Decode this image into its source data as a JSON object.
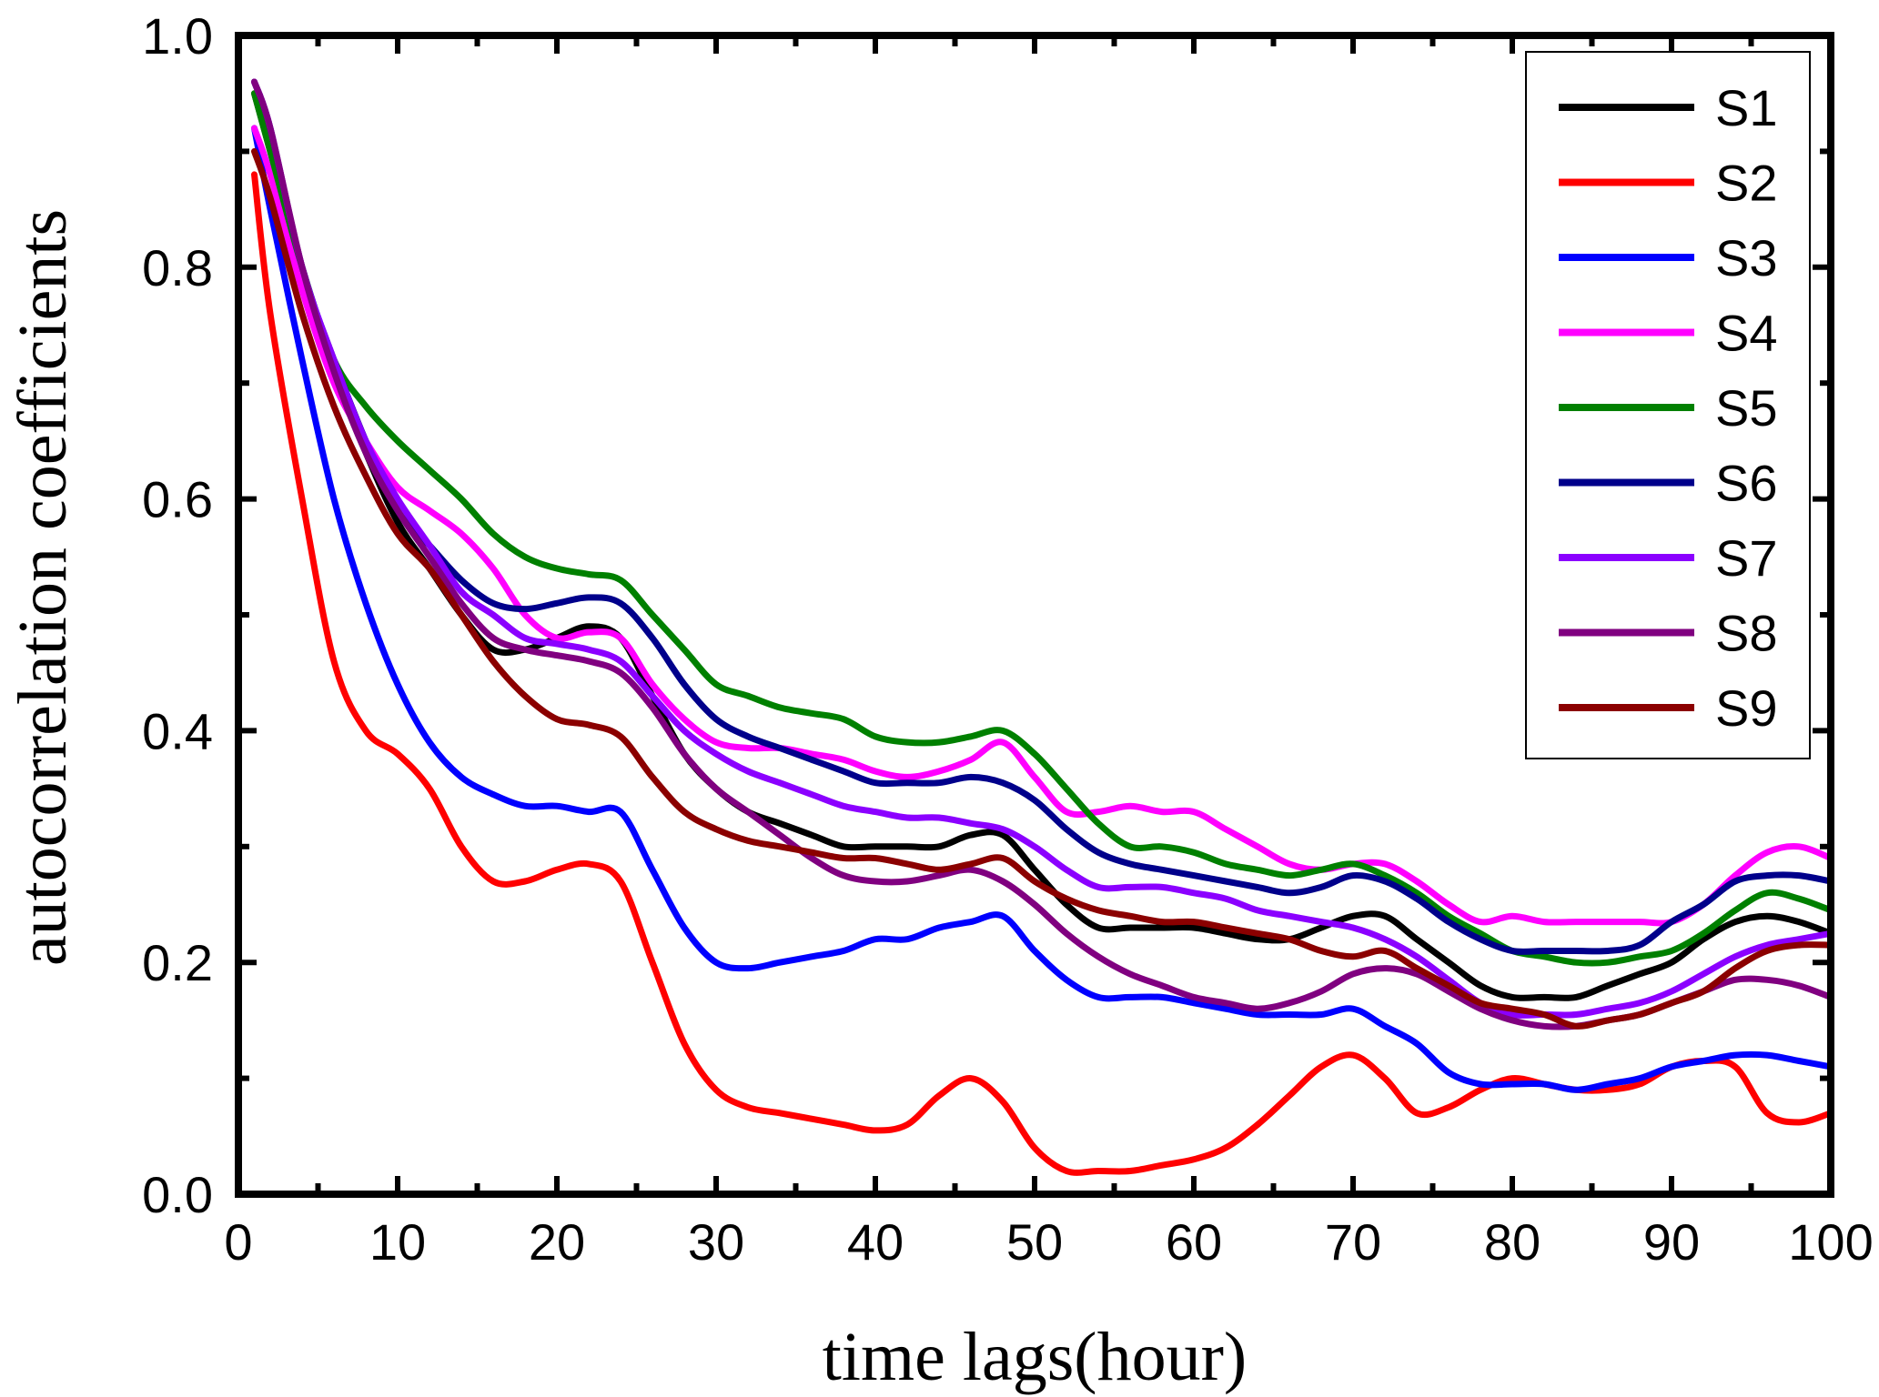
{
  "chart_data": {
    "type": "line",
    "title": "",
    "xlabel": "time lags(hour)",
    "ylabel": "autocorrelation coefficients",
    "xlim": [
      0,
      100
    ],
    "ylim": [
      0.0,
      1.0
    ],
    "xticks": [
      0,
      10,
      20,
      30,
      40,
      50,
      60,
      70,
      80,
      90,
      100
    ],
    "yticks": [
      "0.0",
      "0.2",
      "0.4",
      "0.6",
      "0.8",
      "1.0"
    ],
    "grid": false,
    "legend_position": "top-right",
    "x": [
      1,
      2,
      4,
      6,
      8,
      10,
      12,
      14,
      16,
      18,
      20,
      22,
      24,
      26,
      28,
      30,
      32,
      34,
      36,
      38,
      40,
      42,
      44,
      46,
      48,
      50,
      52,
      54,
      56,
      58,
      60,
      62,
      64,
      66,
      68,
      70,
      72,
      74,
      76,
      78,
      80,
      82,
      84,
      86,
      88,
      90,
      92,
      94,
      96,
      98,
      100
    ],
    "series": [
      {
        "name": "S1",
        "color": "#000000",
        "values": [
          0.95,
          0.9,
          0.8,
          0.71,
          0.64,
          0.58,
          0.54,
          0.5,
          0.47,
          0.47,
          0.48,
          0.49,
          0.48,
          0.43,
          0.38,
          0.35,
          0.33,
          0.32,
          0.31,
          0.3,
          0.3,
          0.3,
          0.3,
          0.31,
          0.31,
          0.28,
          0.25,
          0.23,
          0.23,
          0.23,
          0.23,
          0.225,
          0.22,
          0.22,
          0.23,
          0.24,
          0.24,
          0.22,
          0.2,
          0.18,
          0.17,
          0.17,
          0.17,
          0.18,
          0.19,
          0.2,
          0.22,
          0.235,
          0.24,
          0.235,
          0.225
        ]
      },
      {
        "name": "S2",
        "color": "#ff0000",
        "values": [
          0.88,
          0.76,
          0.6,
          0.46,
          0.4,
          0.38,
          0.35,
          0.3,
          0.27,
          0.27,
          0.28,
          0.285,
          0.27,
          0.2,
          0.13,
          0.09,
          0.075,
          0.07,
          0.065,
          0.06,
          0.055,
          0.06,
          0.085,
          0.1,
          0.08,
          0.04,
          0.02,
          0.02,
          0.02,
          0.025,
          0.03,
          0.04,
          0.06,
          0.085,
          0.11,
          0.12,
          0.1,
          0.07,
          0.075,
          0.09,
          0.1,
          0.095,
          0.09,
          0.09,
          0.095,
          0.11,
          0.115,
          0.11,
          0.07,
          0.062,
          0.07
        ]
      },
      {
        "name": "S3",
        "color": "#0000ff",
        "values": [
          0.92,
          0.85,
          0.72,
          0.6,
          0.51,
          0.44,
          0.39,
          0.36,
          0.345,
          0.335,
          0.335,
          0.33,
          0.33,
          0.28,
          0.23,
          0.2,
          0.195,
          0.2,
          0.205,
          0.21,
          0.22,
          0.22,
          0.23,
          0.235,
          0.24,
          0.21,
          0.185,
          0.17,
          0.17,
          0.17,
          0.165,
          0.16,
          0.155,
          0.155,
          0.155,
          0.16,
          0.145,
          0.13,
          0.105,
          0.095,
          0.095,
          0.095,
          0.09,
          0.095,
          0.1,
          0.11,
          0.115,
          0.12,
          0.12,
          0.115,
          0.11
        ]
      },
      {
        "name": "S4",
        "color": "#ff00ff",
        "values": [
          0.92,
          0.88,
          0.78,
          0.7,
          0.65,
          0.61,
          0.59,
          0.57,
          0.54,
          0.5,
          0.48,
          0.485,
          0.48,
          0.44,
          0.41,
          0.39,
          0.385,
          0.385,
          0.38,
          0.375,
          0.365,
          0.36,
          0.365,
          0.375,
          0.39,
          0.36,
          0.33,
          0.33,
          0.335,
          0.33,
          0.33,
          0.315,
          0.3,
          0.285,
          0.28,
          0.285,
          0.285,
          0.27,
          0.25,
          0.235,
          0.24,
          0.235,
          0.235,
          0.235,
          0.235,
          0.235,
          0.25,
          0.275,
          0.295,
          0.3,
          0.29
        ]
      },
      {
        "name": "S5",
        "color": "#008000",
        "values": [
          0.95,
          0.9,
          0.8,
          0.72,
          0.68,
          0.65,
          0.625,
          0.6,
          0.57,
          0.55,
          0.54,
          0.535,
          0.53,
          0.5,
          0.47,
          0.44,
          0.43,
          0.42,
          0.415,
          0.41,
          0.395,
          0.39,
          0.39,
          0.395,
          0.4,
          0.38,
          0.35,
          0.32,
          0.3,
          0.3,
          0.295,
          0.285,
          0.28,
          0.275,
          0.28,
          0.285,
          0.275,
          0.26,
          0.24,
          0.225,
          0.21,
          0.205,
          0.2,
          0.2,
          0.205,
          0.21,
          0.225,
          0.245,
          0.26,
          0.255,
          0.245
        ]
      },
      {
        "name": "S6",
        "color": "#00008b",
        "values": [
          0.96,
          0.92,
          0.8,
          0.72,
          0.65,
          0.59,
          0.56,
          0.53,
          0.51,
          0.505,
          0.51,
          0.515,
          0.51,
          0.48,
          0.44,
          0.41,
          0.395,
          0.385,
          0.375,
          0.365,
          0.355,
          0.355,
          0.355,
          0.36,
          0.355,
          0.34,
          0.315,
          0.295,
          0.285,
          0.28,
          0.275,
          0.27,
          0.265,
          0.26,
          0.265,
          0.275,
          0.27,
          0.255,
          0.235,
          0.22,
          0.21,
          0.21,
          0.21,
          0.21,
          0.215,
          0.235,
          0.25,
          0.27,
          0.275,
          0.275,
          0.27
        ]
      },
      {
        "name": "S7",
        "color": "#8b00ff",
        "values": [
          0.96,
          0.92,
          0.8,
          0.72,
          0.65,
          0.6,
          0.56,
          0.52,
          0.5,
          0.48,
          0.475,
          0.47,
          0.46,
          0.43,
          0.4,
          0.38,
          0.365,
          0.355,
          0.345,
          0.335,
          0.33,
          0.325,
          0.325,
          0.32,
          0.315,
          0.3,
          0.28,
          0.265,
          0.265,
          0.265,
          0.26,
          0.255,
          0.245,
          0.24,
          0.235,
          0.23,
          0.22,
          0.205,
          0.185,
          0.165,
          0.155,
          0.155,
          0.155,
          0.16,
          0.165,
          0.175,
          0.19,
          0.205,
          0.215,
          0.22,
          0.225
        ]
      },
      {
        "name": "S8",
        "color": "#800080",
        "values": [
          0.96,
          0.92,
          0.8,
          0.71,
          0.64,
          0.59,
          0.55,
          0.51,
          0.48,
          0.47,
          0.465,
          0.46,
          0.45,
          0.42,
          0.38,
          0.35,
          0.33,
          0.31,
          0.29,
          0.275,
          0.27,
          0.27,
          0.275,
          0.28,
          0.27,
          0.25,
          0.225,
          0.205,
          0.19,
          0.18,
          0.17,
          0.165,
          0.16,
          0.165,
          0.175,
          0.19,
          0.195,
          0.19,
          0.175,
          0.16,
          0.15,
          0.145,
          0.145,
          0.15,
          0.155,
          0.165,
          0.175,
          0.185,
          0.185,
          0.18,
          0.17
        ]
      },
      {
        "name": "S9",
        "color": "#8b0000",
        "values": [
          0.9,
          0.86,
          0.76,
          0.68,
          0.62,
          0.57,
          0.54,
          0.5,
          0.46,
          0.43,
          0.41,
          0.405,
          0.395,
          0.36,
          0.33,
          0.315,
          0.305,
          0.3,
          0.295,
          0.29,
          0.29,
          0.285,
          0.28,
          0.285,
          0.29,
          0.27,
          0.255,
          0.245,
          0.24,
          0.235,
          0.235,
          0.23,
          0.225,
          0.22,
          0.21,
          0.205,
          0.21,
          0.195,
          0.18,
          0.165,
          0.16,
          0.155,
          0.145,
          0.15,
          0.155,
          0.165,
          0.175,
          0.195,
          0.21,
          0.215,
          0.215
        ]
      }
    ]
  }
}
